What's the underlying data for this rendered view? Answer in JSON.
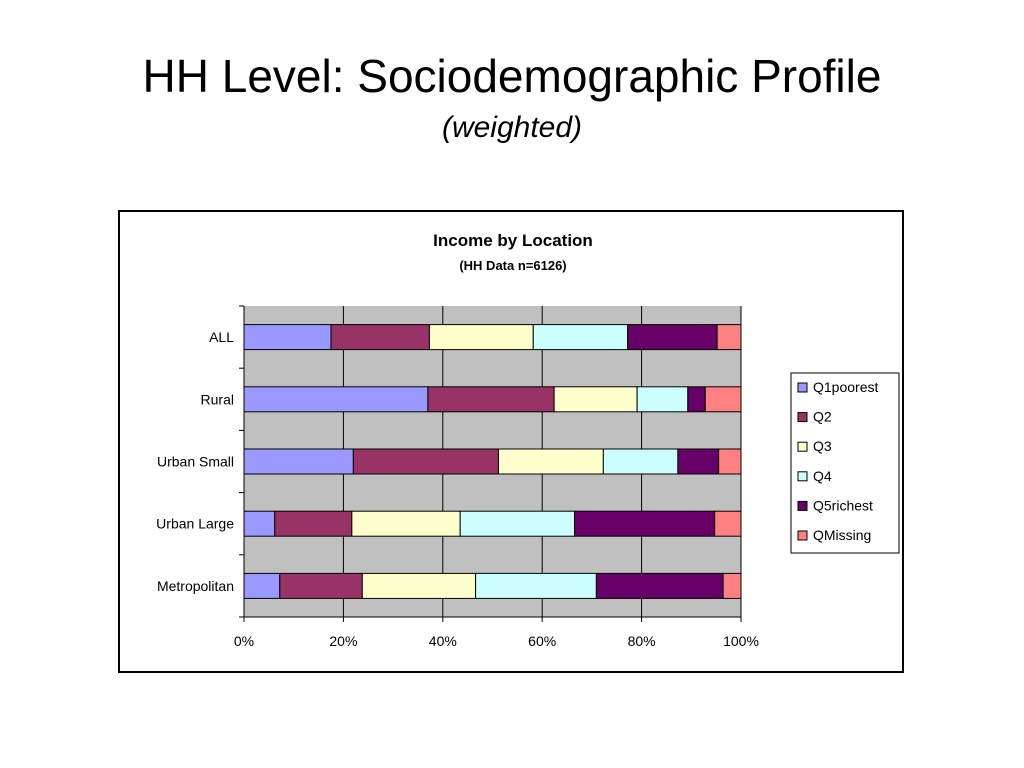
{
  "slide": {
    "title": "HH Level: Sociodemographic Profile",
    "subtitle": "(weighted)"
  },
  "chart_data": {
    "type": "bar",
    "orientation": "horizontal",
    "stacked": "percent",
    "title": "Income by Location",
    "subtitle": "(HH Data n=6126)",
    "categories": [
      "ALL",
      "Rural",
      "Urban Small",
      "Urban Large",
      "Metropolitan"
    ],
    "series": [
      {
        "name": "Q1poorest",
        "color": "#9999ff",
        "values": [
          17.5,
          37.0,
          22.0,
          6.2,
          7.2
        ]
      },
      {
        "name": "Q2",
        "color": "#993366",
        "values": [
          19.8,
          25.4,
          29.2,
          15.5,
          16.6
        ]
      },
      {
        "name": "Q3",
        "color": "#ffffcc",
        "values": [
          20.9,
          16.7,
          21.1,
          21.8,
          22.8
        ]
      },
      {
        "name": "Q4",
        "color": "#ccffff",
        "values": [
          19.0,
          10.2,
          15.0,
          23.0,
          24.3
        ]
      },
      {
        "name": "Q5richest",
        "color": "#660066",
        "values": [
          18.0,
          3.5,
          8.2,
          28.2,
          25.5
        ]
      },
      {
        "name": "QMissing",
        "color": "#ff8080",
        "values": [
          4.8,
          7.2,
          4.5,
          5.3,
          3.6
        ]
      }
    ],
    "x_ticks": [
      "0%",
      "20%",
      "40%",
      "60%",
      "80%",
      "100%"
    ],
    "xlim": [
      0,
      100
    ],
    "plot_background": "#c0c0c0",
    "grid": true,
    "legend": "right"
  }
}
